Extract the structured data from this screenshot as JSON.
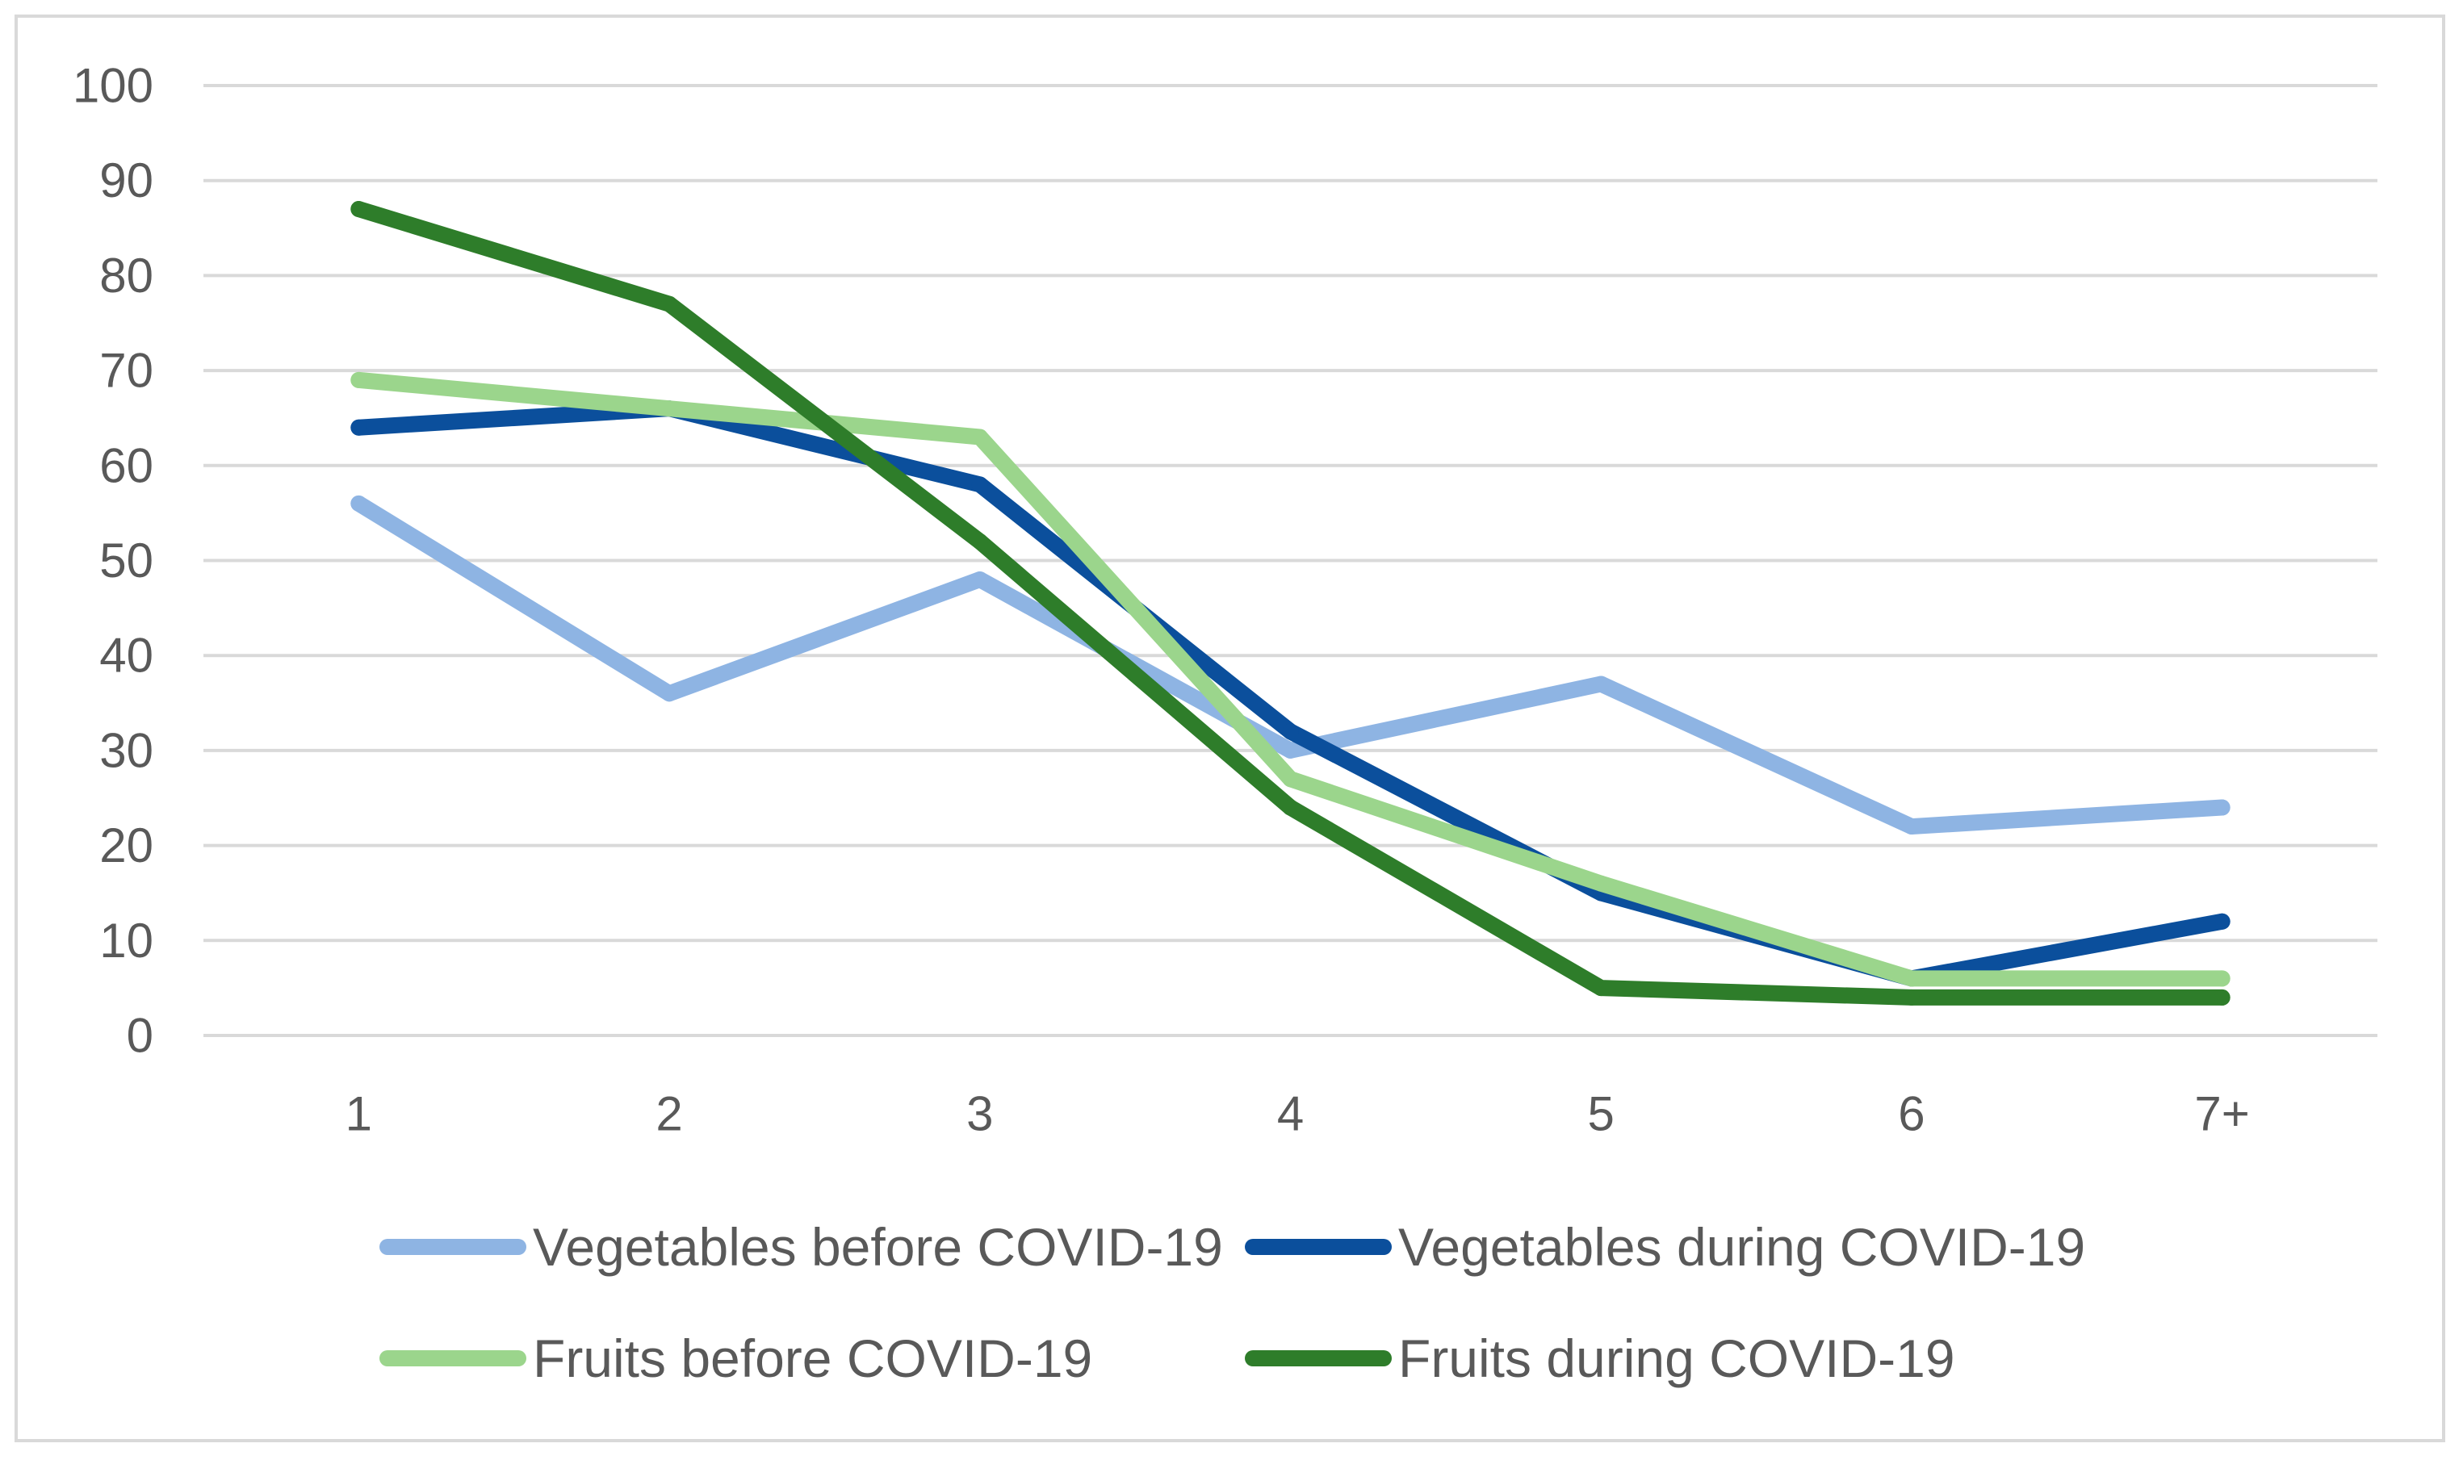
{
  "chart_data": {
    "type": "line",
    "categories": [
      "1",
      "2",
      "3",
      "4",
      "5",
      "6",
      "7+"
    ],
    "ylim": [
      0,
      100
    ],
    "yticks": [
      "0",
      "10",
      "20",
      "30",
      "40",
      "50",
      "60",
      "70",
      "80",
      "90",
      "100"
    ],
    "grid": true,
    "legend_position": "bottom",
    "series": [
      {
        "name": "Vegetables before COVID-19",
        "color": "#8eb4e3",
        "values": [
          56,
          36,
          48,
          30,
          37,
          22,
          24
        ]
      },
      {
        "name": "Vegetables during COVID-19",
        "color": "#0b4f9c",
        "values": [
          64,
          66,
          58,
          32,
          15,
          6,
          12
        ]
      },
      {
        "name": "Fruits before COVID-19",
        "color": "#9bd58c",
        "values": [
          69,
          66,
          63,
          27,
          16,
          6,
          6
        ]
      },
      {
        "name": "Fruits during COVID-19",
        "color": "#2e7d2a",
        "values": [
          87,
          77,
          52,
          24,
          5,
          4,
          4
        ]
      }
    ]
  }
}
